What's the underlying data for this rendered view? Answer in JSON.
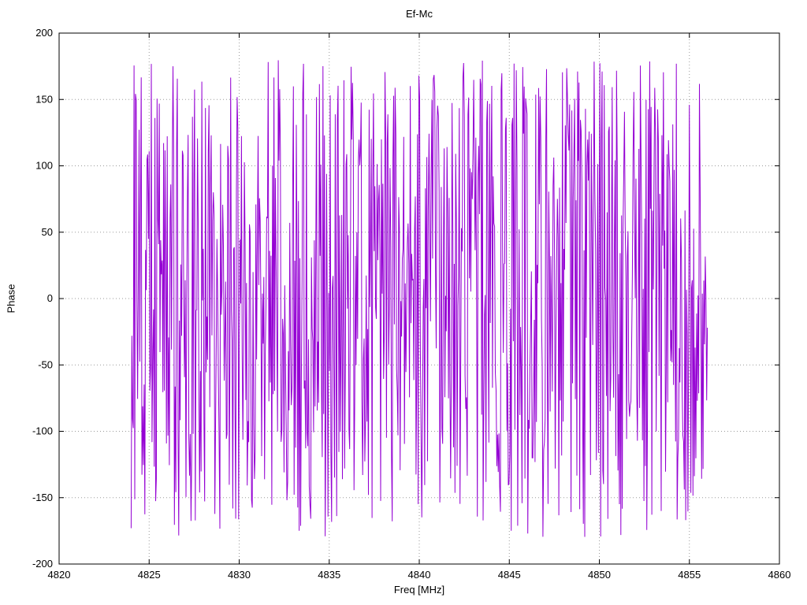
{
  "chart_data": {
    "type": "line",
    "title": "Ef-Mc",
    "xlabel": "Freq [MHz]",
    "ylabel": "Phase",
    "xlim": [
      4820,
      4860
    ],
    "ylim": [
      -200,
      200
    ],
    "x_ticks": [
      4820,
      4825,
      4830,
      4835,
      4840,
      4845,
      4850,
      4855,
      4860
    ],
    "y_ticks": [
      -200,
      -150,
      -100,
      -50,
      0,
      50,
      100,
      150,
      200
    ],
    "grid": true,
    "legend": "none",
    "series": [
      {
        "name": "Ef-Mc",
        "color": "#9400d3",
        "x_start": 4824.0,
        "x_end": 4856.0,
        "n_points": 800,
        "y_min": -180,
        "y_max": 180,
        "distribution": "uniform-random-wrapped-phase",
        "seed": 42
      }
    ]
  },
  "colors": {
    "line": "#9400d3",
    "grid": "#9a9a9a",
    "axis": "#000000",
    "background": "#ffffff"
  }
}
